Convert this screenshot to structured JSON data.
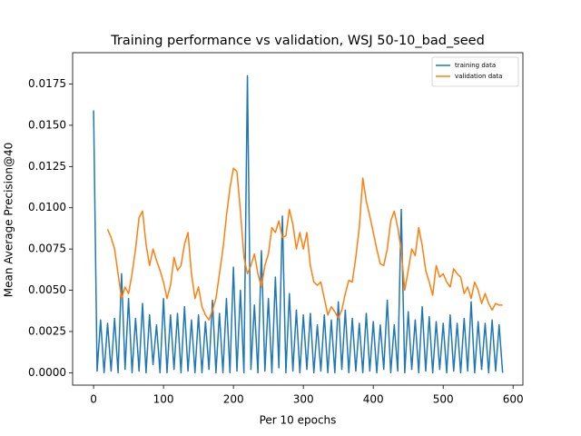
{
  "chart_data": {
    "type": "line",
    "title": "Training performance vs validation, WSJ 50-10_bad_seed",
    "x_label": "Per 10 epochs",
    "y_label": "Mean Average Precision@40",
    "xlim": [
      -30,
      614
    ],
    "ylim": [
      -0.00075,
      0.0194
    ],
    "xticks": [
      0,
      100,
      200,
      300,
      400,
      500,
      600
    ],
    "yticks": [
      {
        "value": 0,
        "label": "0.0000"
      },
      {
        "value": 0.0025,
        "label": "0.0025"
      },
      {
        "value": 0.005,
        "label": "0.0050"
      },
      {
        "value": 0.0075,
        "label": "0.0075"
      },
      {
        "value": 0.01,
        "label": "0.0100"
      },
      {
        "value": 0.0125,
        "label": "0.0125"
      },
      {
        "value": 0.015,
        "label": "0.0150"
      },
      {
        "value": 0.0175,
        "label": "0.0175"
      }
    ],
    "legend": "upper right",
    "series": [
      {
        "name": "training data",
        "color": "#1f77b4",
        "x": [
          0,
          5,
          10,
          15,
          20,
          25,
          30,
          35,
          40,
          45,
          50,
          55,
          60,
          65,
          70,
          75,
          80,
          85,
          90,
          95,
          100,
          105,
          110,
          115,
          120,
          125,
          130,
          135,
          140,
          145,
          150,
          155,
          160,
          165,
          170,
          175,
          180,
          185,
          190,
          195,
          200,
          205,
          210,
          215,
          220,
          225,
          230,
          235,
          240,
          245,
          250,
          255,
          260,
          265,
          270,
          275,
          280,
          285,
          290,
          295,
          300,
          305,
          310,
          315,
          320,
          325,
          330,
          335,
          340,
          345,
          350,
          355,
          360,
          365,
          370,
          375,
          380,
          385,
          390,
          395,
          400,
          405,
          410,
          415,
          420,
          425,
          430,
          435,
          440,
          445,
          450,
          455,
          460,
          465,
          470,
          475,
          480,
          485,
          490,
          495,
          500,
          505,
          510,
          515,
          520,
          525,
          530,
          535,
          540,
          545,
          550,
          555,
          560,
          565,
          570,
          575,
          580,
          585
        ],
        "values": [
          0.0159,
          0.0001,
          0.0032,
          0.0,
          0.003,
          0.0001,
          0.0033,
          0.0,
          0.006,
          0.0002,
          0.0045,
          0.0,
          0.0033,
          0.0001,
          0.0042,
          0.0,
          0.0035,
          0.0005,
          0.0029,
          0.0,
          0.0045,
          0.0,
          0.0035,
          0.0002,
          0.0036,
          0.0,
          0.004,
          0.0001,
          0.0032,
          0.0,
          0.0035,
          0.0,
          0.0031,
          0.0002,
          0.0044,
          0.0,
          0.0036,
          0.0,
          0.0045,
          0.0,
          0.0064,
          0.0001,
          0.005,
          0.0,
          0.018,
          0.0002,
          0.0041,
          0.0,
          0.0074,
          0.0001,
          0.0045,
          0.0,
          0.0058,
          0.0003,
          0.0095,
          0.0,
          0.0048,
          0.0001,
          0.0038,
          0.0,
          0.0035,
          0.0002,
          0.0036,
          0.0,
          0.0029,
          0.0001,
          0.0035,
          0.0,
          0.0032,
          0.0,
          0.0043,
          0.0002,
          0.0038,
          0.0,
          0.0033,
          0.0001,
          0.003,
          0.0,
          0.0036,
          0.0001,
          0.0031,
          0.0,
          0.0029,
          0.0002,
          0.0044,
          0.0,
          0.0029,
          0.0001,
          0.0099,
          0.0,
          0.0037,
          0.0002,
          0.0032,
          0.0,
          0.004,
          0.0001,
          0.0034,
          0.0,
          0.0031,
          0.0002,
          0.003,
          0.0,
          0.0035,
          0.0001,
          0.003,
          0.0,
          0.0033,
          0.0001,
          0.0043,
          0.0,
          0.0031,
          0.0002,
          0.003,
          0.0,
          0.0032,
          0.0001,
          0.0029,
          0.0
        ]
      },
      {
        "name": "validation data",
        "color": "#ff7f0e",
        "x": [
          20,
          25,
          30,
          35,
          40,
          45,
          50,
          55,
          60,
          65,
          70,
          75,
          80,
          85,
          90,
          95,
          100,
          105,
          110,
          115,
          120,
          125,
          130,
          135,
          140,
          145,
          150,
          155,
          160,
          165,
          170,
          175,
          180,
          185,
          190,
          195,
          200,
          205,
          210,
          215,
          220,
          225,
          230,
          235,
          240,
          245,
          250,
          255,
          260,
          265,
          270,
          275,
          280,
          285,
          290,
          295,
          300,
          305,
          310,
          315,
          320,
          325,
          330,
          335,
          340,
          345,
          350,
          355,
          360,
          365,
          370,
          375,
          380,
          385,
          390,
          395,
          400,
          405,
          410,
          415,
          420,
          425,
          430,
          435,
          440,
          445,
          450,
          455,
          460,
          465,
          470,
          475,
          480,
          485,
          490,
          495,
          500,
          505,
          510,
          515,
          520,
          525,
          530,
          535,
          540,
          545,
          550,
          555,
          560,
          565,
          570,
          575,
          580,
          585
        ],
        "values": [
          0.0087,
          0.0082,
          0.0075,
          0.006,
          0.0045,
          0.0052,
          0.0048,
          0.006,
          0.0075,
          0.0094,
          0.0098,
          0.0078,
          0.0065,
          0.0075,
          0.0068,
          0.0062,
          0.0055,
          0.0045,
          0.0053,
          0.007,
          0.0062,
          0.0065,
          0.0078,
          0.0085,
          0.006,
          0.0045,
          0.0052,
          0.004,
          0.0035,
          0.0032,
          0.0038,
          0.0045,
          0.006,
          0.0075,
          0.0095,
          0.0112,
          0.0124,
          0.0122,
          0.0098,
          0.007,
          0.006,
          0.0065,
          0.0072,
          0.006,
          0.0052,
          0.0065,
          0.0072,
          0.0088,
          0.0085,
          0.0092,
          0.0082,
          0.0083,
          0.0099,
          0.009,
          0.0075,
          0.0085,
          0.0075,
          0.0085,
          0.0065,
          0.0055,
          0.0053,
          0.0055,
          0.0045,
          0.0035,
          0.004,
          0.0037,
          0.0033,
          0.0038,
          0.0048,
          0.0056,
          0.0055,
          0.007,
          0.0088,
          0.0118,
          0.0104,
          0.0095,
          0.0085,
          0.0075,
          0.0066,
          0.0065,
          0.0075,
          0.0092,
          0.0098,
          0.0088,
          0.0074,
          0.005,
          0.0062,
          0.0075,
          0.0071,
          0.0088,
          0.0077,
          0.0062,
          0.0055,
          0.0047,
          0.0065,
          0.0058,
          0.006,
          0.0055,
          0.0052,
          0.0063,
          0.006,
          0.0058,
          0.0048,
          0.0052,
          0.0045,
          0.0055,
          0.005,
          0.0042,
          0.0048,
          0.0042,
          0.0038,
          0.0042,
          0.0041,
          0.0041
        ]
      }
    ]
  }
}
